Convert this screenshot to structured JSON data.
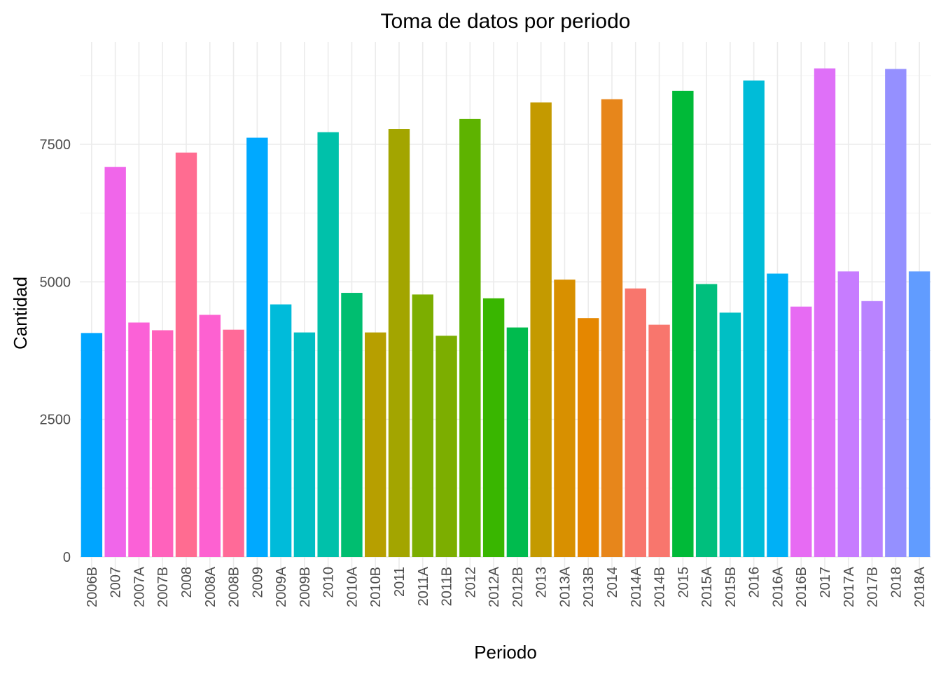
{
  "chart_data": {
    "type": "bar",
    "title": "Toma de datos por periodo",
    "xlabel": "Periodo",
    "ylabel": "Cantidad",
    "ylim": [
      0,
      9200
    ],
    "yticks": [
      0,
      2500,
      5000,
      7500
    ],
    "grid": true,
    "legend": "none",
    "categories": [
      "2006B",
      "2007",
      "2007A",
      "2007B",
      "2008",
      "2008A",
      "2008B",
      "2009",
      "2009A",
      "2009B",
      "2010",
      "2010A",
      "2010B",
      "2011",
      "2011A",
      "2011B",
      "2012",
      "2012A",
      "2012B",
      "2013",
      "2013A",
      "2013B",
      "2014",
      "2014A",
      "2014B",
      "2015",
      "2015A",
      "2015B",
      "2016",
      "2016A",
      "2016B",
      "2017",
      "2017A",
      "2017B",
      "2018",
      "2018A"
    ],
    "values": [
      4070,
      7090,
      4260,
      4120,
      7350,
      4400,
      4130,
      7620,
      4590,
      4080,
      7720,
      4800,
      4080,
      7780,
      4770,
      4020,
      7960,
      4700,
      4170,
      8260,
      5040,
      4340,
      8320,
      4880,
      4220,
      8470,
      4960,
      4440,
      8660,
      5150,
      4550,
      8880,
      5190,
      4650,
      8870,
      5190
    ],
    "colors": [
      "#00A5FF",
      "#F066EA",
      "#FB61D7",
      "#FF62BC",
      "#FF6C91",
      "#FD61D1",
      "#FF6A98",
      "#00A9FF",
      "#00BBDA",
      "#00BFC4",
      "#00C1AA",
      "#00BE70",
      "#B79F00",
      "#A3A500",
      "#7CAE00",
      "#7CAE00",
      "#5EB300",
      "#39B600",
      "#00BB4E",
      "#C49A00",
      "#D89000",
      "#E58700",
      "#E7861B",
      "#F8766D",
      "#F8766D",
      "#00BA38",
      "#00BF7D",
      "#00BFC4",
      "#00BCD8",
      "#00B0F6",
      "#E76BF3",
      "#DF70F8",
      "#C77CFF",
      "#B983FF",
      "#9590FF",
      "#619CFF"
    ]
  }
}
